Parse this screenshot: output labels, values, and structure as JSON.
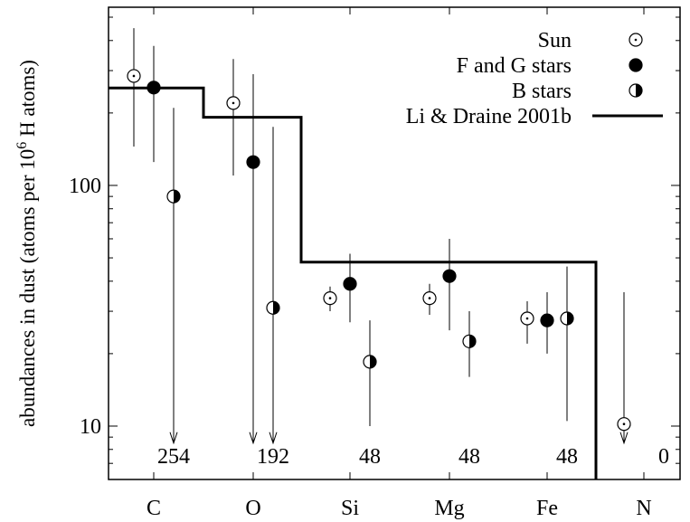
{
  "chart_data": {
    "type": "scatter",
    "ylabel_main": "abundances in dust  (atoms per 10",
    "ylabel_exp": "6",
    "ylabel_tail": " H atoms)",
    "yscale": "log",
    "ylim": [
      6,
      550
    ],
    "yticks": [
      {
        "value": 10,
        "label": "10"
      },
      {
        "value": 100,
        "label": "100"
      }
    ],
    "categories": [
      "C",
      "O",
      "Si",
      "Mg",
      "Fe",
      "N"
    ],
    "model_totals": [
      "254",
      "192",
      "48",
      "48",
      "48",
      "0"
    ],
    "legend_position": "top-right",
    "series": [
      {
        "name": "Sun",
        "marker": "open-circle",
        "points": [
          {
            "category": "C",
            "y": 285,
            "err_low": 145,
            "err_high": 450
          },
          {
            "category": "O",
            "y": 220,
            "err_low": 110,
            "err_high": 335
          },
          {
            "category": "Si",
            "y": 34,
            "err_low": 30,
            "err_high": 38
          },
          {
            "category": "Mg",
            "y": 34,
            "err_low": 29,
            "err_high": 39
          },
          {
            "category": "Fe",
            "y": 28,
            "err_low": 22,
            "err_high": 33
          },
          {
            "category": "N",
            "y": 10.2,
            "err_low": 8.5,
            "err_high": 36,
            "upper_limit": true
          }
        ]
      },
      {
        "name": "F and G stars",
        "marker": "filled-circle",
        "points": [
          {
            "category": "C",
            "y": 255,
            "err_low": 125,
            "err_high": 380
          },
          {
            "category": "O",
            "y": 125,
            "err_low": 8.5,
            "err_high": 290,
            "upper_limit": true
          },
          {
            "category": "Si",
            "y": 39,
            "err_low": 27,
            "err_high": 52
          },
          {
            "category": "Mg",
            "y": 42,
            "err_low": 25,
            "err_high": 60
          },
          {
            "category": "Fe",
            "y": 27.5,
            "err_low": 20,
            "err_high": 36
          }
        ]
      },
      {
        "name": "B stars",
        "marker": "half-filled-circle",
        "points": [
          {
            "category": "C",
            "y": 90,
            "err_low": 8.5,
            "err_high": 210,
            "upper_limit": true
          },
          {
            "category": "O",
            "y": 31,
            "err_low": 8.5,
            "err_high": 175,
            "upper_limit": true
          },
          {
            "category": "Si",
            "y": 18.5,
            "err_low": 10,
            "err_high": 27.5
          },
          {
            "category": "Mg",
            "y": 22.5,
            "err_low": 16,
            "err_high": 30
          },
          {
            "category": "Fe",
            "y": 28,
            "err_low": 10.5,
            "err_high": 46
          }
        ]
      },
      {
        "name": "Li & Draine 2001b",
        "marker": "step-line",
        "steps": [
          {
            "category": "C",
            "y": 254
          },
          {
            "category": "O",
            "y": 192
          },
          {
            "category": "Si",
            "y": 48
          },
          {
            "category": "Mg",
            "y": 48
          },
          {
            "category": "Fe",
            "y": 48
          },
          {
            "category": "N",
            "y": 0
          }
        ]
      }
    ]
  }
}
